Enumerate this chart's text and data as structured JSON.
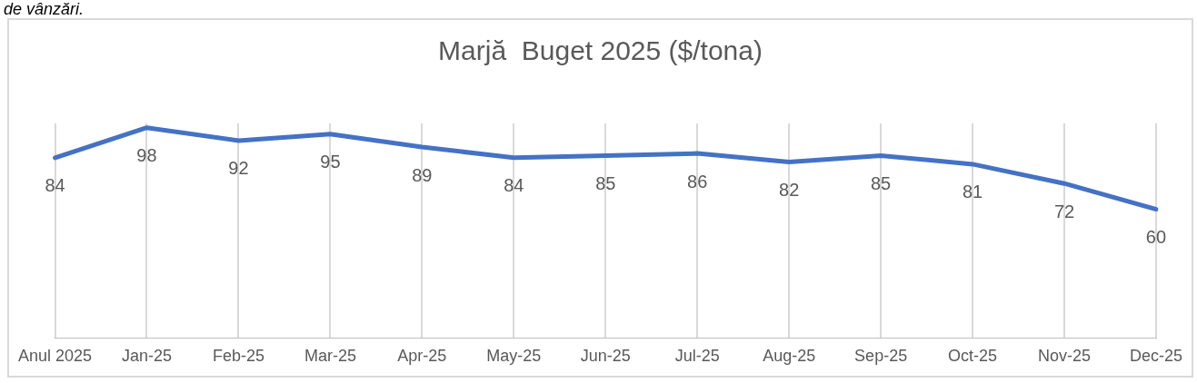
{
  "chart_data": {
    "type": "line",
    "title": "Marjă  Buget 2025 ($/tona)",
    "annotations": [
      "de vânzări."
    ],
    "categories": [
      "Anul 2025",
      "Jan-25",
      "Feb-25",
      "Mar-25",
      "Apr-25",
      "May-25",
      "Jun-25",
      "Jul-25",
      "Aug-25",
      "Sep-25",
      "Oct-25",
      "Nov-25",
      "Dec-25"
    ],
    "series": [
      {
        "color": "#4472c4",
        "values": [
          84,
          98,
          92,
          95,
          89,
          84,
          85,
          86,
          82,
          85,
          81,
          72,
          60
        ]
      }
    ],
    "data_labels": true,
    "grid": "x",
    "legend": false,
    "tick_labels": "x",
    "marker": "none",
    "line_style": "solid"
  }
}
